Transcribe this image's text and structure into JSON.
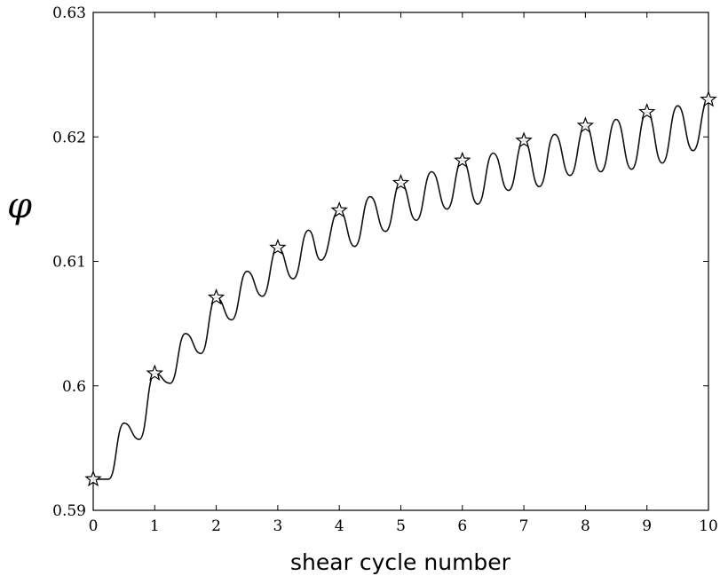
{
  "chart_data": {
    "type": "line",
    "title": "",
    "xlabel": "shear cycle number",
    "ylabel": "φ",
    "xlim": [
      0,
      10
    ],
    "ylim": [
      0.59,
      0.63
    ],
    "x_ticks": [
      "0",
      "1",
      "2",
      "3",
      "4",
      "5",
      "6",
      "7",
      "8",
      "9",
      "10"
    ],
    "y_ticks": [
      "0.59",
      "0.6",
      "0.61",
      "0.62",
      "0.63"
    ],
    "grid": false,
    "legend": "none",
    "series": [
      {
        "x": [
          0,
          0.25,
          0.5,
          0.75,
          1,
          1.25,
          1.5,
          1.75,
          2,
          2.25,
          2.5,
          2.75,
          3,
          3.25,
          3.5,
          3.7,
          4,
          4.25,
          4.5,
          4.75,
          5,
          5.25,
          5.5,
          5.75,
          6,
          6.25,
          6.5,
          6.75,
          7,
          7.25,
          7.5,
          7.75,
          8,
          8.25,
          8.5,
          8.75,
          9,
          9.25,
          9.5,
          9.75,
          10
        ],
        "y": [
          0.5925,
          0.5925,
          0.597,
          0.5957,
          0.601,
          0.6002,
          0.6042,
          0.6026,
          0.6071,
          0.6053,
          0.6092,
          0.6072,
          0.6111,
          0.6086,
          0.6125,
          0.6101,
          0.6141,
          0.6112,
          0.6152,
          0.6124,
          0.6163,
          0.6133,
          0.6172,
          0.6142,
          0.6181,
          0.6146,
          0.6187,
          0.6157,
          0.6197,
          0.616,
          0.6202,
          0.6169,
          0.6209,
          0.6172,
          0.6214,
          0.6174,
          0.622,
          0.6179,
          0.6225,
          0.6189,
          0.623
        ]
      }
    ],
    "markers": {
      "symbol": "star",
      "x": [
        0,
        1,
        2,
        3,
        4,
        5,
        6,
        7,
        8,
        9,
        10
      ],
      "y": [
        0.5925,
        0.601,
        0.6071,
        0.6111,
        0.6141,
        0.6163,
        0.6181,
        0.6197,
        0.6209,
        0.622,
        0.623
      ]
    }
  }
}
